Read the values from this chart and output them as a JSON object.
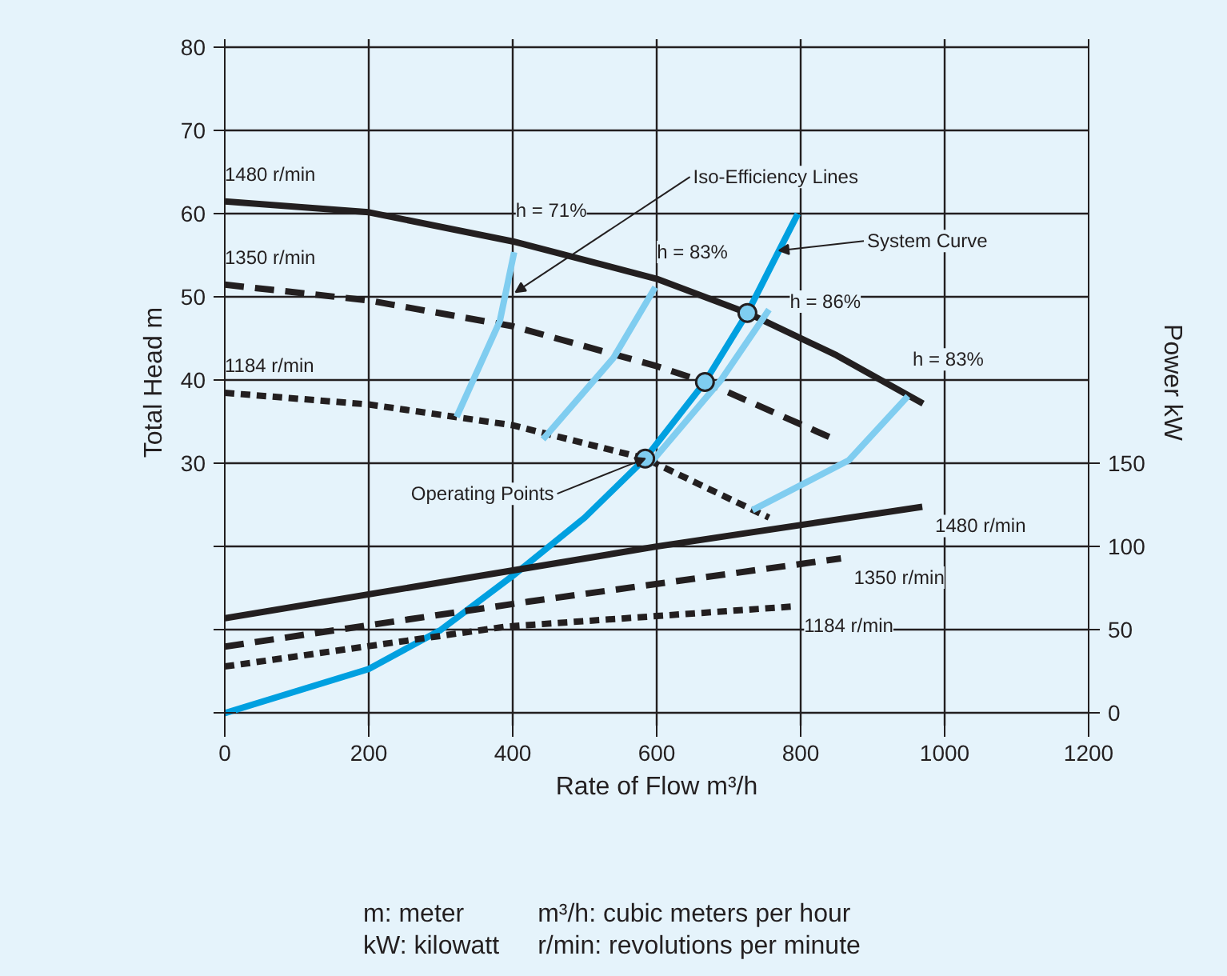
{
  "chart_data": {
    "type": "line",
    "xlabel": "Rate of Flow m³/h",
    "ylabel": "Total Head m",
    "y2label": "Power kW",
    "xlim": [
      0,
      1200
    ],
    "xticks": [
      0,
      200,
      400,
      600,
      800,
      1000,
      1200
    ],
    "ylim": [
      -1.5,
      81
    ],
    "yticks": [
      {
        "value": 0,
        "label": null
      },
      {
        "value": 10,
        "label": null
      },
      {
        "value": 20,
        "label": null
      },
      30,
      40,
      50,
      60,
      70,
      80
    ],
    "y2lim": [
      -7.5,
      405
    ],
    "y2ticks": [
      0,
      50,
      100,
      150
    ],
    "grid": true,
    "series": [
      {
        "name": "1480 r/min",
        "color": "#231f20",
        "line_style": "solid",
        "x": [
          0,
          200,
          400,
          600,
          726,
          850,
          970
        ],
        "values": [
          61.5,
          60.2,
          56.7,
          52.2,
          48.1,
          43,
          37.2
        ]
      },
      {
        "name": "1350 r/min",
        "color": "#231f20",
        "line_style": "dashed",
        "x": [
          0,
          200,
          400,
          600,
          667,
          850
        ],
        "values": [
          51.5,
          49.6,
          46.5,
          41.7,
          39.8,
          32.8
        ]
      },
      {
        "name": "1184 r/min",
        "color": "#231f20",
        "line_style": "dotted",
        "x": [
          0,
          200,
          400,
          584,
          756
        ],
        "values": [
          38.5,
          37.1,
          34.6,
          30.6,
          23.5
        ]
      },
      {
        "color": "#00a0e0",
        "line_style": "solid",
        "x": [
          0,
          200,
          300,
          400,
          500,
          584,
          667,
          726,
          770,
          796
        ],
        "values": [
          0,
          5.3,
          10,
          16.5,
          23.5,
          30.6,
          39.8,
          48.1,
          55.6,
          60
        ]
      },
      {
        "color": "#80cdf0",
        "line_style": "solid",
        "x": [
          322,
          382,
          402
        ],
        "values": [
          35.6,
          47.1,
          55.4
        ]
      },
      {
        "color": "#80cdf0",
        "line_style": "solid",
        "x": [
          442,
          540,
          598
        ],
        "values": [
          32.9,
          42.7,
          51.2
        ]
      },
      {
        "color": "#80cdf0",
        "line_style": "solid",
        "x": [
          589,
          689,
          756
        ],
        "values": [
          29.8,
          40,
          48.5
        ]
      },
      {
        "color": "#80cdf0",
        "line_style": "solid",
        "x": [
          733,
          867,
          949
        ],
        "values": [
          24.4,
          30.4,
          38.1
        ]
      },
      {
        "type": "scatter",
        "marker": "circle",
        "color": "#7fcdf0",
        "x": [
          726,
          667,
          584
        ],
        "values": [
          48.1,
          39.8,
          30.6
        ]
      },
      {
        "name": "1480 r/min",
        "axis": "y2",
        "color": "#231f20",
        "line_style": "solid",
        "x": [
          0,
          598,
          969
        ],
        "values": [
          57,
          100,
          124
        ]
      },
      {
        "name": "1350 r/min",
        "axis": "y2",
        "color": "#231f20",
        "line_style": "dashed",
        "x": [
          0,
          422,
          856
        ],
        "values": [
          40,
          67,
          93
        ]
      },
      {
        "name": "1184 r/min",
        "axis": "y2",
        "color": "#231f20",
        "line_style": "dotted",
        "x": [
          0,
          391,
          787
        ],
        "values": [
          28,
          52,
          64
        ]
      }
    ],
    "annotations": [
      {
        "text": "h = 71%",
        "x": 402,
        "y": 55.4
      },
      {
        "text": "h = 83%",
        "x": 598,
        "y": 51.2
      },
      {
        "text": "h = 86%",
        "x": 756,
        "y": 48.5
      },
      {
        "text": "h = 83%",
        "x": 949,
        "y": 38.1
      },
      {
        "text": "Iso-Efficiency Lines",
        "x": 404,
        "y": 50.6
      },
      {
        "text": "System Curve",
        "x": 770,
        "y": 55.6
      },
      {
        "text": "Operating Points",
        "x": 584,
        "y": 30.6
      },
      "m: meter",
      "m³/h: cubic meters per hour",
      "kW: kilowatt",
      "r/min: revolutions per minute"
    ]
  }
}
